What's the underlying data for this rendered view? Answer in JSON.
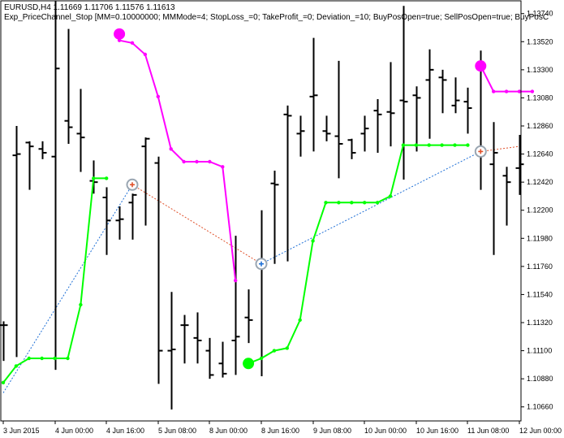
{
  "header": {
    "symbol_line": "EURUSD,H4  1.11669 1.11706 1.11576 1.11613",
    "expert_line": "Exp_PriceChannel_Stop [MM=0.10000000; MMMode=4; StopLoss_=0; TakeProfit_=0; Deviation_=10; BuyPosOpen=true; SellPosOpen=true; BuyPosC"
  },
  "colors": {
    "background": "#ffffff",
    "bars": "#000000",
    "upper_channel": "#ff00ff",
    "lower_channel": "#00ff00",
    "buy_trade_line": "#1e6fd6",
    "sell_trade_line": "#e0502a"
  },
  "chart_data": {
    "type": "line",
    "ylim": [
      1.1055,
      1.1384
    ],
    "price_ticks": [
      "1.13740",
      "1.13520",
      "1.13300",
      "1.13080",
      "1.12860",
      "1.12640",
      "1.12420",
      "1.12200",
      "1.11980",
      "1.11760",
      "1.11540",
      "1.11320",
      "1.11100",
      "1.10880",
      "1.10660"
    ],
    "time_ticks": [
      {
        "label": "3 Jun 2015",
        "i": 0
      },
      {
        "label": "4 Jun 00:00",
        "i": 4
      },
      {
        "label": "4 Jun 16:00",
        "i": 8
      },
      {
        "label": "5 Jun 08:00",
        "i": 12
      },
      {
        "label": "8 Jun 00:00",
        "i": 16
      },
      {
        "label": "8 Jun 16:00",
        "i": 20
      },
      {
        "label": "9 Jun 08:00",
        "i": 24
      },
      {
        "label": "10 Jun 00:00",
        "i": 28
      },
      {
        "label": "10 Jun 16:00",
        "i": 32
      },
      {
        "label": "11 Jun 08:00",
        "i": 36
      },
      {
        "label": "12 Jun 00:00",
        "i": 40
      }
    ],
    "bars": [
      {
        "h": 1.1133,
        "l": 1.1102,
        "o": 1.113,
        "c": 1.113
      },
      {
        "h": 1.1286,
        "l": 1.1105,
        "o": 1.1263,
        "c": 1.1264
      },
      {
        "h": 1.1274,
        "l": 1.1236,
        "o": 1.1273,
        "c": 1.127
      },
      {
        "h": 1.1274,
        "l": 1.126,
        "o": 1.1268,
        "c": 1.1265
      },
      {
        "h": 1.1384,
        "l": 1.1095,
        "o": 1.1262,
        "c": 1.1331
      },
      {
        "h": 1.1362,
        "l": 1.1272,
        "o": 1.129,
        "c": 1.1285
      },
      {
        "h": 1.1315,
        "l": 1.125,
        "o": 1.128,
        "c": 1.1277
      },
      {
        "h": 1.1259,
        "l": 1.1233,
        "o": 1.1243,
        "c": 1.1242
      },
      {
        "h": 1.1238,
        "l": 1.1185,
        "o": 1.123,
        "c": 1.1212
      },
      {
        "h": 1.1223,
        "l": 1.1197,
        "o": 1.1212,
        "c": 1.1213
      },
      {
        "h": 1.1233,
        "l": 1.1197,
        "o": 1.1226,
        "c": 1.1232
      },
      {
        "h": 1.1277,
        "l": 1.1208,
        "o": 1.127,
        "c": 1.1276
      },
      {
        "h": 1.1262,
        "l": 1.1084,
        "o": 1.1257,
        "c": 1.111
      },
      {
        "h": 1.1156,
        "l": 1.1064,
        "o": 1.111,
        "c": 1.1111
      },
      {
        "h": 1.1138,
        "l": 1.11,
        "o": 1.113,
        "c": 1.113
      },
      {
        "h": 1.114,
        "l": 1.11,
        "o": 1.112,
        "c": 1.1118
      },
      {
        "h": 1.112,
        "l": 1.1088,
        "o": 1.111,
        "c": 1.1091
      },
      {
        "h": 1.1117,
        "l": 1.1089,
        "o": 1.11,
        "c": 1.1092
      },
      {
        "h": 1.12,
        "l": 1.1091,
        "o": 1.1118,
        "c": 1.1121
      },
      {
        "h": 1.1158,
        "l": 1.1116,
        "o": 1.1136,
        "c": 1.1134
      },
      {
        "h": 1.122,
        "l": 1.109,
        "o": 1.118,
        "c": 1.1177
      },
      {
        "h": 1.1251,
        "l": 1.1178,
        "o": 1.1241,
        "c": 1.124
      },
      {
        "h": 1.1302,
        "l": 1.118,
        "o": 1.1295,
        "c": 1.1294
      },
      {
        "h": 1.1294,
        "l": 1.1262,
        "o": 1.128,
        "c": 1.1282
      },
      {
        "h": 1.1355,
        "l": 1.1266,
        "o": 1.1309,
        "c": 1.131
      },
      {
        "h": 1.1294,
        "l": 1.1274,
        "o": 1.1282,
        "c": 1.128
      },
      {
        "h": 1.1337,
        "l": 1.1245,
        "o": 1.1278,
        "c": 1.1272
      },
      {
        "h": 1.1276,
        "l": 1.126,
        "o": 1.1275,
        "c": 1.1265
      },
      {
        "h": 1.1294,
        "l": 1.1266,
        "o": 1.128,
        "c": 1.1284
      },
      {
        "h": 1.1307,
        "l": 1.1265,
        "o": 1.1298,
        "c": 1.1295
      },
      {
        "h": 1.1336,
        "l": 1.127,
        "o": 1.1297,
        "c": 1.1296
      },
      {
        "h": 1.138,
        "l": 1.1244,
        "o": 1.1306,
        "c": 1.1305
      },
      {
        "h": 1.1317,
        "l": 1.1266,
        "o": 1.131,
        "c": 1.1308
      },
      {
        "h": 1.1346,
        "l": 1.1276,
        "o": 1.1322,
        "c": 1.133
      },
      {
        "h": 1.133,
        "l": 1.1296,
        "o": 1.1324,
        "c": 1.1322
      },
      {
        "h": 1.1324,
        "l": 1.1296,
        "o": 1.1302,
        "c": 1.1306
      },
      {
        "h": 1.1316,
        "l": 1.128,
        "o": 1.1305,
        "c": 1.13
      },
      {
        "h": 1.1345,
        "l": 1.1236,
        "o": 1.1264,
        "c": 1.1263
      },
      {
        "h": 1.1289,
        "l": 1.1185,
        "o": 1.1256,
        "c": 1.1265
      },
      {
        "h": 1.1254,
        "l": 1.1208,
        "o": 1.1247,
        "c": 1.1242
      },
      {
        "h": 1.1279,
        "l": 1.1232,
        "o": 1.1253,
        "c": 1.1256
      }
    ],
    "upper_channel": [
      {
        "i": 9,
        "y": 1.1353
      },
      {
        "i": 10,
        "y": 1.1351
      },
      {
        "i": 11,
        "y": 1.1342
      },
      {
        "i": 12,
        "y": 1.1309
      },
      {
        "i": 13,
        "y": 1.1268
      },
      {
        "i": 14,
        "y": 1.1258
      },
      {
        "i": 15,
        "y": 1.1258
      },
      {
        "i": 16,
        "y": 1.1258
      },
      {
        "i": 17,
        "y": 1.1254
      },
      {
        "i": 18,
        "y": 1.1165
      }
    ],
    "upper_channel_2": [
      {
        "i": 37,
        "y": 1.1333
      },
      {
        "i": 38,
        "y": 1.1313
      },
      {
        "i": 39,
        "y": 1.1313
      },
      {
        "i": 40,
        "y": 1.1313
      },
      {
        "i": 41,
        "y": 1.1313
      }
    ],
    "lower_channel": [
      {
        "i": 0,
        "y": 1.1085
      },
      {
        "i": 1,
        "y": 1.1098
      },
      {
        "i": 2,
        "y": 1.1104
      },
      {
        "i": 3,
        "y": 1.1104
      },
      {
        "i": 4,
        "y": 1.1104
      },
      {
        "i": 5,
        "y": 1.1104
      },
      {
        "i": 6,
        "y": 1.1146
      },
      {
        "i": 7,
        "y": 1.1245
      },
      {
        "i": 8,
        "y": 1.1245
      }
    ],
    "lower_channel_2": [
      {
        "i": 19,
        "y": 1.11
      },
      {
        "i": 20,
        "y": 1.1104
      },
      {
        "i": 21,
        "y": 1.111
      },
      {
        "i": 22,
        "y": 1.1112
      },
      {
        "i": 23,
        "y": 1.1134
      },
      {
        "i": 24,
        "y": 1.1196
      },
      {
        "i": 25,
        "y": 1.1226
      },
      {
        "i": 26,
        "y": 1.1226
      },
      {
        "i": 27,
        "y": 1.1226
      },
      {
        "i": 28,
        "y": 1.1226
      },
      {
        "i": 29,
        "y": 1.1226
      },
      {
        "i": 30,
        "y": 1.1231
      },
      {
        "i": 31,
        "y": 1.1271
      },
      {
        "i": 32,
        "y": 1.1271
      },
      {
        "i": 33,
        "y": 1.1271
      },
      {
        "i": 34,
        "y": 1.1271
      },
      {
        "i": 35,
        "y": 1.1271
      },
      {
        "i": 36,
        "y": 1.1271
      }
    ],
    "signals": [
      {
        "kind": "sell",
        "i": 9,
        "y": 1.1358
      },
      {
        "kind": "sell",
        "i": 37,
        "y": 1.1333
      },
      {
        "kind": "buy",
        "i": 19,
        "y": 1.11
      }
    ],
    "trades": [
      {
        "kind": "buy",
        "from": {
          "i": 0,
          "y": 1.1077
        },
        "to": {
          "i": 10,
          "y": 1.124
        }
      },
      {
        "kind": "sell",
        "from": {
          "i": 10,
          "y": 1.124
        },
        "to": {
          "i": 20,
          "y": 1.1178
        }
      },
      {
        "kind": "buy",
        "from": {
          "i": 20,
          "y": 1.1178
        },
        "to": {
          "i": 37,
          "y": 1.1266
        }
      },
      {
        "kind": "sell",
        "from": {
          "i": 37,
          "y": 1.1266
        },
        "to": {
          "i": 40,
          "y": 1.127
        }
      }
    ],
    "trade_markers": [
      {
        "kind": "sell",
        "i": 10,
        "y": 1.124
      },
      {
        "kind": "buy",
        "i": 20,
        "y": 1.1178
      },
      {
        "kind": "sell",
        "i": 37,
        "y": 1.1266
      }
    ]
  }
}
